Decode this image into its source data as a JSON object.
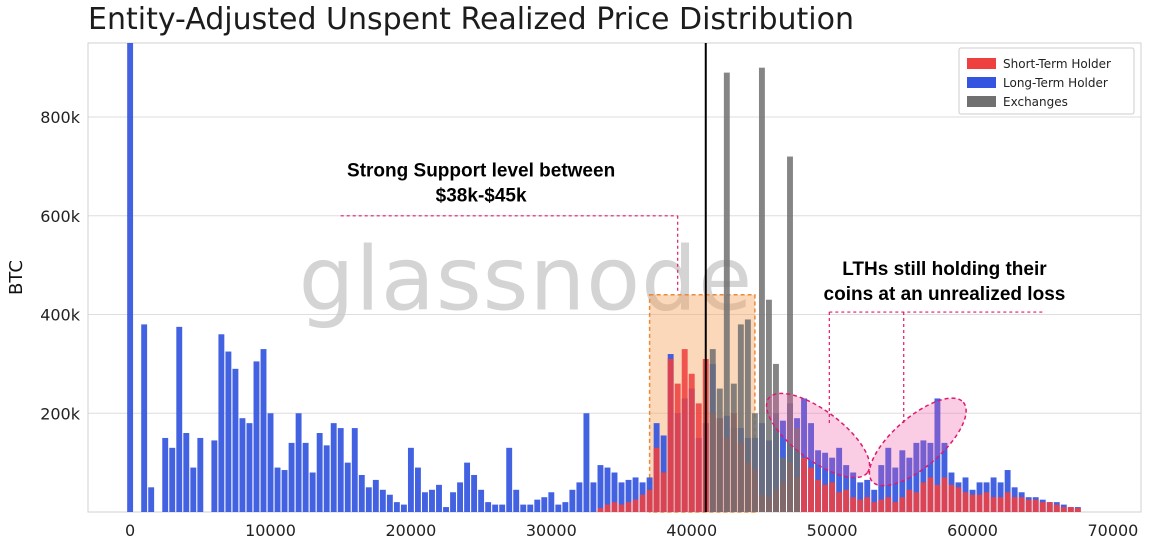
{
  "chart_data": {
    "type": "bar",
    "title": "Entity-Adjusted Unspent Realized Price Distribution",
    "xlabel": "",
    "ylabel": "BTC",
    "xlim": [
      -3000,
      72000
    ],
    "ylim": [
      0,
      950000
    ],
    "bin_width": 500,
    "grid": "horizontal",
    "legend_position": "top-right",
    "x_ticks": [
      0,
      10000,
      20000,
      30000,
      40000,
      50000,
      60000,
      70000
    ],
    "x_tick_labels": [
      "0",
      "10000",
      "20000",
      "30000",
      "40000",
      "50000",
      "60000",
      "70000"
    ],
    "y_ticks": [
      200000,
      400000,
      600000,
      800000
    ],
    "y_tick_labels": [
      "200k",
      "400k",
      "600k",
      "800k"
    ],
    "series": [
      {
        "name": "Long-Term Holder",
        "color": "#3355e0",
        "points": [
          [
            0,
            950000
          ],
          [
            1000,
            380000
          ],
          [
            1500,
            50000
          ],
          [
            2500,
            150000
          ],
          [
            3000,
            130000
          ],
          [
            3500,
            375000
          ],
          [
            4000,
            160000
          ],
          [
            4500,
            90000
          ],
          [
            5000,
            150000
          ],
          [
            6000,
            145000
          ],
          [
            6500,
            360000
          ],
          [
            7000,
            325000
          ],
          [
            7500,
            290000
          ],
          [
            8000,
            190000
          ],
          [
            8500,
            180000
          ],
          [
            9000,
            305000
          ],
          [
            9500,
            330000
          ],
          [
            10000,
            200000
          ],
          [
            10500,
            90000
          ],
          [
            11000,
            85000
          ],
          [
            11500,
            140000
          ],
          [
            12000,
            200000
          ],
          [
            12500,
            140000
          ],
          [
            13000,
            80000
          ],
          [
            13500,
            160000
          ],
          [
            14000,
            135000
          ],
          [
            14500,
            180000
          ],
          [
            15000,
            170000
          ],
          [
            15500,
            100000
          ],
          [
            16000,
            170000
          ],
          [
            16500,
            75000
          ],
          [
            17000,
            50000
          ],
          [
            17500,
            65000
          ],
          [
            18000,
            45000
          ],
          [
            18500,
            35000
          ],
          [
            19000,
            20000
          ],
          [
            19500,
            15000
          ],
          [
            20000,
            130000
          ],
          [
            20500,
            90000
          ],
          [
            21000,
            40000
          ],
          [
            21500,
            45000
          ],
          [
            22000,
            55000
          ],
          [
            22500,
            10000
          ],
          [
            23000,
            40000
          ],
          [
            23500,
            60000
          ],
          [
            24000,
            100000
          ],
          [
            24500,
            75000
          ],
          [
            25000,
            45000
          ],
          [
            25500,
            20000
          ],
          [
            26000,
            15000
          ],
          [
            26500,
            15000
          ],
          [
            27000,
            130000
          ],
          [
            27500,
            45000
          ],
          [
            28000,
            15000
          ],
          [
            28500,
            15000
          ],
          [
            29000,
            25000
          ],
          [
            29500,
            30000
          ],
          [
            30000,
            40000
          ],
          [
            30500,
            15000
          ],
          [
            31000,
            20000
          ],
          [
            31500,
            45000
          ],
          [
            32000,
            60000
          ],
          [
            32500,
            200000
          ],
          [
            33000,
            60000
          ],
          [
            33500,
            95000
          ],
          [
            34000,
            90000
          ],
          [
            34500,
            80000
          ],
          [
            35000,
            60000
          ],
          [
            35500,
            65000
          ],
          [
            36000,
            70000
          ],
          [
            36500,
            60000
          ],
          [
            37000,
            70000
          ],
          [
            37500,
            180000
          ],
          [
            38000,
            155000
          ],
          [
            38500,
            320000
          ],
          [
            39000,
            200000
          ],
          [
            39500,
            230000
          ],
          [
            40000,
            250000
          ],
          [
            40500,
            150000
          ],
          [
            41000,
            180000
          ],
          [
            41500,
            300000
          ],
          [
            42000,
            190000
          ],
          [
            42500,
            195000
          ],
          [
            43000,
            170000
          ],
          [
            43500,
            170000
          ],
          [
            44000,
            150000
          ],
          [
            44500,
            150000
          ],
          [
            45000,
            180000
          ],
          [
            45500,
            145000
          ],
          [
            46000,
            200000
          ],
          [
            46500,
            185000
          ],
          [
            47000,
            220000
          ],
          [
            47500,
            190000
          ],
          [
            48000,
            230000
          ],
          [
            48500,
            180000
          ],
          [
            49000,
            125000
          ],
          [
            49500,
            120000
          ],
          [
            50000,
            110000
          ],
          [
            50500,
            130000
          ],
          [
            51000,
            95000
          ],
          [
            51500,
            80000
          ],
          [
            52000,
            60000
          ],
          [
            52500,
            65000
          ],
          [
            53000,
            45000
          ],
          [
            53500,
            95000
          ],
          [
            54000,
            130000
          ],
          [
            54500,
            90000
          ],
          [
            55000,
            125000
          ],
          [
            55500,
            110000
          ],
          [
            56000,
            140000
          ],
          [
            56500,
            145000
          ],
          [
            57000,
            140000
          ],
          [
            57500,
            230000
          ],
          [
            58000,
            140000
          ],
          [
            58500,
            80000
          ],
          [
            59000,
            60000
          ],
          [
            59500,
            70000
          ],
          [
            60000,
            45000
          ],
          [
            60500,
            60000
          ],
          [
            61000,
            60000
          ],
          [
            61500,
            70000
          ],
          [
            62000,
            60000
          ],
          [
            62500,
            85000
          ],
          [
            63000,
            50000
          ],
          [
            63500,
            40000
          ],
          [
            64000,
            30000
          ],
          [
            64500,
            30000
          ],
          [
            65000,
            25000
          ],
          [
            65500,
            20000
          ],
          [
            66000,
            20000
          ],
          [
            66500,
            15000
          ],
          [
            67000,
            10000
          ],
          [
            67500,
            10000
          ]
        ]
      },
      {
        "name": "Short-Term Holder",
        "color": "#ef4040",
        "points": [
          [
            33500,
            8000
          ],
          [
            34000,
            15000
          ],
          [
            34500,
            20000
          ],
          [
            35000,
            15000
          ],
          [
            35500,
            20000
          ],
          [
            36000,
            25000
          ],
          [
            36500,
            35000
          ],
          [
            37000,
            45000
          ],
          [
            37500,
            130000
          ],
          [
            38000,
            80000
          ],
          [
            38500,
            310000
          ],
          [
            39000,
            260000
          ],
          [
            39500,
            330000
          ],
          [
            40000,
            280000
          ],
          [
            40500,
            220000
          ],
          [
            41000,
            310000
          ],
          [
            41500,
            200000
          ],
          [
            42000,
            190000
          ],
          [
            42500,
            150000
          ],
          [
            43000,
            200000
          ],
          [
            43500,
            140000
          ],
          [
            44000,
            100000
          ],
          [
            44500,
            85000
          ],
          [
            45000,
            35000
          ],
          [
            45500,
            30000
          ],
          [
            46000,
            45000
          ],
          [
            46500,
            60000
          ],
          [
            47000,
            100000
          ],
          [
            47500,
            70000
          ],
          [
            48000,
            110000
          ],
          [
            48500,
            90000
          ],
          [
            49000,
            65000
          ],
          [
            49500,
            55000
          ],
          [
            50000,
            60000
          ],
          [
            50500,
            40000
          ],
          [
            51000,
            45000
          ],
          [
            51500,
            30000
          ],
          [
            52000,
            25000
          ],
          [
            52500,
            30000
          ],
          [
            53000,
            20000
          ],
          [
            53500,
            25000
          ],
          [
            54000,
            30000
          ],
          [
            54500,
            20000
          ],
          [
            55000,
            30000
          ],
          [
            55500,
            45000
          ],
          [
            56000,
            40000
          ],
          [
            56500,
            60000
          ],
          [
            57000,
            70000
          ],
          [
            57500,
            55000
          ],
          [
            58000,
            70000
          ],
          [
            58500,
            55000
          ],
          [
            59000,
            50000
          ],
          [
            59500,
            40000
          ],
          [
            60000,
            35000
          ],
          [
            60500,
            35000
          ],
          [
            61000,
            40000
          ],
          [
            61500,
            30000
          ],
          [
            62000,
            30000
          ],
          [
            62500,
            40000
          ],
          [
            63000,
            30000
          ],
          [
            63500,
            30000
          ],
          [
            64000,
            25000
          ],
          [
            64500,
            25000
          ],
          [
            65000,
            20000
          ],
          [
            65500,
            20000
          ],
          [
            66000,
            15000
          ],
          [
            66500,
            10000
          ],
          [
            67000,
            10000
          ],
          [
            67500,
            8000
          ]
        ]
      },
      {
        "name": "Exchanges",
        "color": "#707070",
        "points": [
          [
            41500,
            330000
          ],
          [
            42000,
            250000
          ],
          [
            42500,
            890000
          ],
          [
            43000,
            260000
          ],
          [
            43500,
            380000
          ],
          [
            44000,
            390000
          ],
          [
            44500,
            200000
          ],
          [
            45000,
            900000
          ],
          [
            45500,
            430000
          ],
          [
            46000,
            300000
          ],
          [
            46500,
            110000
          ],
          [
            47000,
            720000
          ],
          [
            47500,
            170000
          ]
        ]
      }
    ],
    "reference_line": {
      "x": 41000,
      "color": "#000000"
    },
    "support_zone": {
      "x0": 37000,
      "x1": 44500,
      "y0": 0,
      "y1": 440000,
      "color": "#f5a35a"
    },
    "ellipses": [
      {
        "cx": 49000,
        "cy": 155000,
        "rx": 4400,
        "ry": 50000,
        "angle": 37
      },
      {
        "cx": 56100,
        "cy": 142000,
        "rx": 4300,
        "ry": 50000,
        "angle": -41
      }
    ],
    "annotations": [
      {
        "lines": [
          "Strong Support level between",
          "$38k-$45k"
        ],
        "x": 25000,
        "y_top": 680000,
        "y_mid": 635000,
        "leader_x0": 15000,
        "leader_x1": 39000,
        "leader_y": 600000,
        "leader_drop_x": 39000,
        "leader_drop_y": 445000
      },
      {
        "lines": [
          "LTHs still holding their",
          "coins at an unrealized loss"
        ],
        "x": 58000,
        "y_top": 480000,
        "y_mid": 434000,
        "leader_x0": 49800,
        "leader_x1": 65000,
        "leader_y": 405000,
        "leader_drops": [
          [
            49800,
            175000
          ],
          [
            55100,
            175000
          ]
        ]
      }
    ],
    "watermark": "glassnode",
    "legend": [
      "Short-Term Holder",
      "Long-Term Holder",
      "Exchanges"
    ]
  }
}
